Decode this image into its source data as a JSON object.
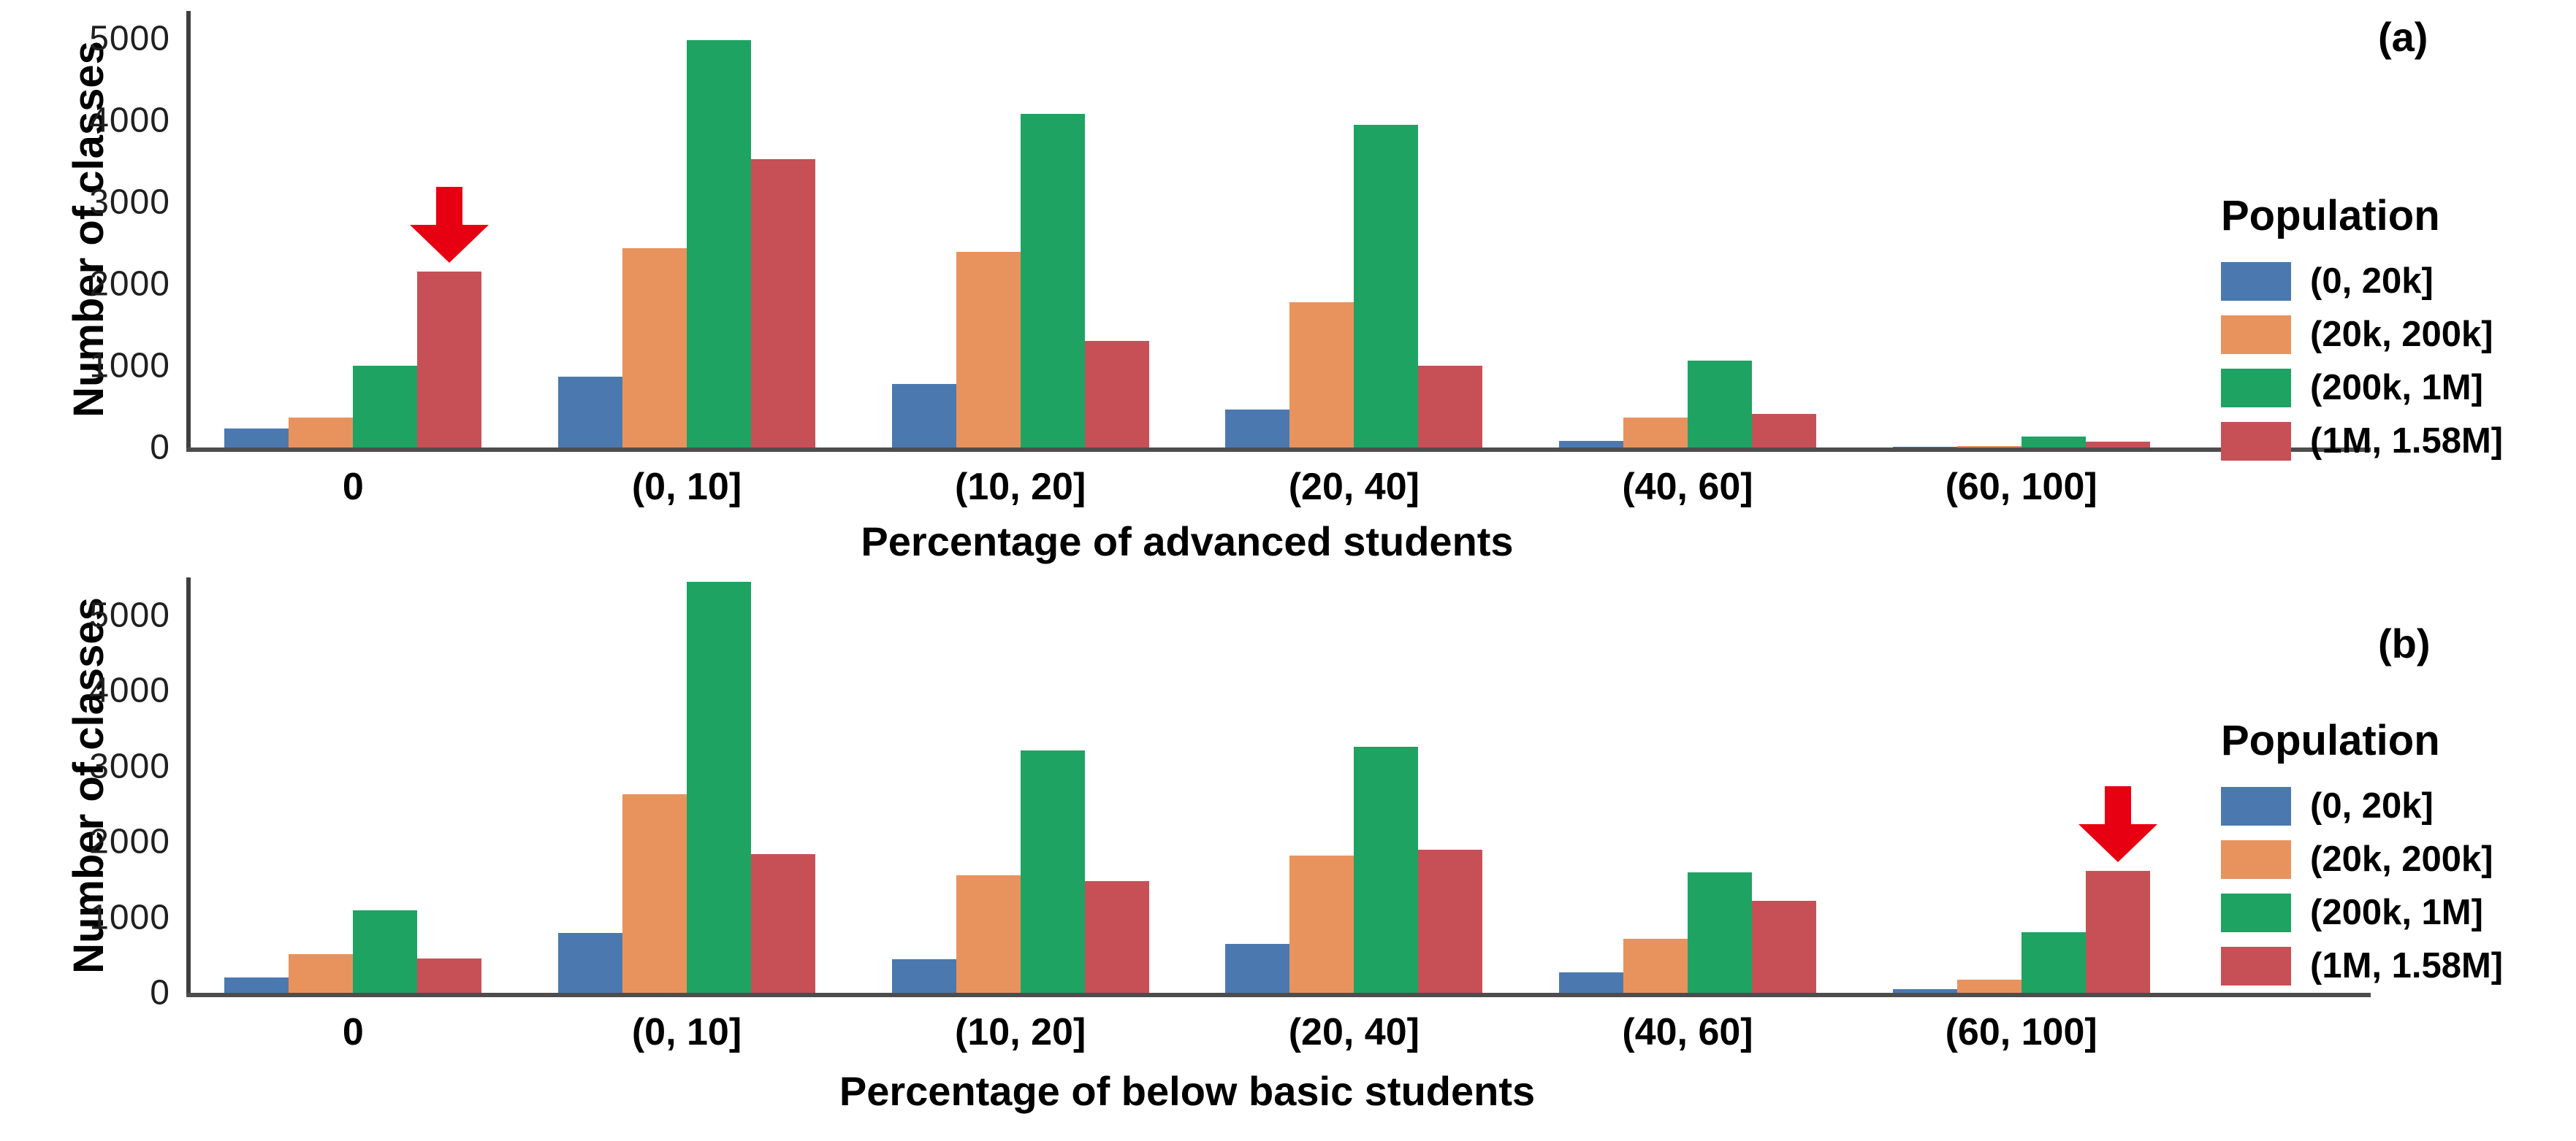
{
  "figure": {
    "background": "#ffffff",
    "panel_a_label": "(a)",
    "panel_b_label": "(b)"
  },
  "chart_data": [
    {
      "type": "bar",
      "panel_label": "(a)",
      "title": "",
      "xlabel": "Percentage of advanced students",
      "ylabel": "Number of classes",
      "ylim": [
        0,
        5300
      ],
      "grid": false,
      "legend_position": "right",
      "legend_title": "Population",
      "yticks": [
        "0",
        "1000",
        "2000",
        "3000",
        "4000",
        "5000"
      ],
      "categories": [
        "0",
        "(0, 10]",
        "(10, 20]",
        "(20, 40]",
        "(40, 60]",
        "(60, 100]"
      ],
      "series": [
        {
          "name": "(0, 20k]",
          "color": "#4b79af",
          "values": [
            230,
            870,
            780,
            460,
            80,
            10
          ]
        },
        {
          "name": "(20k, 200k]",
          "color": "#e8935e",
          "values": [
            370,
            2440,
            2390,
            1780,
            370,
            20
          ]
        },
        {
          "name": "(200k, 1M]",
          "color": "#1ea363",
          "values": [
            1000,
            4980,
            4080,
            3950,
            1060,
            130
          ]
        },
        {
          "name": "(1M, 1.58M]",
          "color": "#c75057",
          "values": [
            2150,
            3530,
            1300,
            1000,
            410,
            70
          ]
        }
      ],
      "annotation": {
        "icon": "arrow-down-icon",
        "color": "#e60012",
        "series_index": 3,
        "category_index": 0,
        "meaning": "highlights (1M, 1.58M] bar at category 0"
      }
    },
    {
      "type": "bar",
      "panel_label": "(b)",
      "title": "",
      "xlabel": "Percentage of below basic students",
      "ylabel": "Number of classes",
      "ylim": [
        0,
        5500
      ],
      "grid": false,
      "legend_position": "right",
      "legend_title": "Population",
      "yticks": [
        "0",
        "1000",
        "2000",
        "3000",
        "4000",
        "5000"
      ],
      "categories": [
        "0",
        "(0, 10]",
        "(10, 20]",
        "(20, 40]",
        "(40, 60]",
        "(60, 100]"
      ],
      "series": [
        {
          "name": "(0, 20k]",
          "color": "#4b79af",
          "values": [
            200,
            790,
            440,
            650,
            270,
            50
          ]
        },
        {
          "name": "(20k, 200k]",
          "color": "#e8935e",
          "values": [
            510,
            2630,
            1560,
            1820,
            715,
            175
          ]
        },
        {
          "name": "(200k, 1M]",
          "color": "#1ea363",
          "values": [
            1090,
            5440,
            3210,
            3260,
            1595,
            800
          ]
        },
        {
          "name": "(1M, 1.58M]",
          "color": "#c75057",
          "values": [
            455,
            1840,
            1480,
            1890,
            1220,
            1615
          ]
        }
      ],
      "annotation": {
        "icon": "arrow-down-icon",
        "color": "#e60012",
        "series_index": 3,
        "category_index": 5,
        "meaning": "highlights (1M, 1.58M] bar at category (60, 100]"
      }
    }
  ]
}
